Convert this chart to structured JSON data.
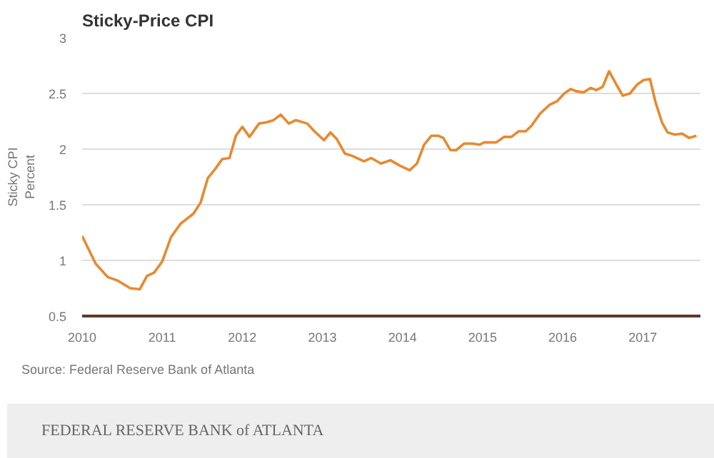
{
  "chart_data": {
    "type": "line",
    "title": "Sticky-Price CPI",
    "ylabel": "Sticky CPI\nPercent",
    "annotations": [
      "Source: Federal Reserve Bank of Atlanta",
      "FEDERAL RESERVE BANK of ATLANTA"
    ],
    "x": [
      2010.0,
      2010.17,
      2010.32,
      2010.44,
      2010.6,
      2010.72,
      2010.81,
      2010.9,
      2011.0,
      2011.11,
      2011.23,
      2011.39,
      2011.48,
      2011.57,
      2011.66,
      2011.75,
      2011.84,
      2011.92,
      2012.0,
      2012.09,
      2012.21,
      2012.3,
      2012.39,
      2012.48,
      2012.58,
      2012.67,
      2012.81,
      2012.9,
      2013.02,
      2013.1,
      2013.18,
      2013.28,
      2013.37,
      2013.52,
      2013.61,
      2013.73,
      2013.85,
      2013.97,
      2014.09,
      2014.18,
      2014.27,
      2014.36,
      2014.45,
      2014.51,
      2014.6,
      2014.67,
      2014.77,
      2014.87,
      2014.96,
      2015.02,
      2015.17,
      2015.27,
      2015.36,
      2015.45,
      2015.54,
      2015.61,
      2015.72,
      2015.84,
      2015.93,
      2016.02,
      2016.1,
      2016.17,
      2016.26,
      2016.35,
      2016.42,
      2016.5,
      2016.58,
      2016.67,
      2016.75,
      2016.84,
      2016.93,
      2017.01,
      2017.09,
      2017.16,
      2017.24,
      2017.31,
      2017.4,
      2017.49,
      2017.58,
      2017.67
    ],
    "series": [
      {
        "color": "#e8892f",
        "values": [
          1.22,
          0.97,
          0.85,
          0.82,
          0.75,
          0.74,
          0.86,
          0.89,
          0.99,
          1.21,
          1.33,
          1.42,
          1.52,
          1.74,
          1.82,
          1.91,
          1.92,
          2.12,
          2.2,
          2.11,
          2.23,
          2.24,
          2.26,
          2.31,
          2.23,
          2.26,
          2.23,
          2.16,
          2.08,
          2.15,
          2.09,
          1.96,
          1.94,
          1.89,
          1.92,
          1.87,
          1.9,
          1.85,
          1.81,
          1.87,
          2.04,
          2.12,
          2.12,
          2.1,
          1.99,
          1.99,
          2.05,
          2.05,
          2.04,
          2.06,
          2.06,
          2.11,
          2.11,
          2.16,
          2.16,
          2.21,
          2.32,
          2.4,
          2.43,
          2.5,
          2.54,
          2.52,
          2.51,
          2.55,
          2.53,
          2.56,
          2.7,
          2.58,
          2.48,
          2.5,
          2.58,
          2.62,
          2.63,
          2.42,
          2.24,
          2.15,
          2.13,
          2.14,
          2.1,
          2.12
        ]
      }
    ],
    "xlim": [
      2010,
      2017.72
    ],
    "xticks": [
      2010,
      2011,
      2012,
      2013,
      2014,
      2015,
      2016,
      2017
    ],
    "ylim": [
      0.5,
      3
    ],
    "yticks": [
      0.5,
      1,
      1.5,
      2,
      2.5,
      3
    ],
    "grid": "y",
    "marker": "none",
    "line_style": "solid"
  }
}
